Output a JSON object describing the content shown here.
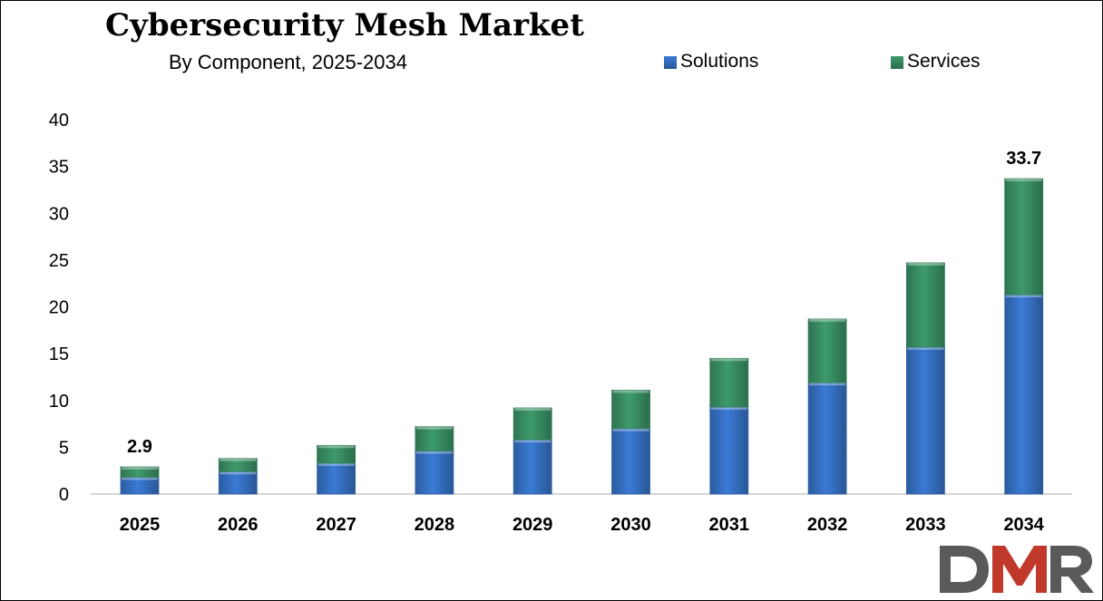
{
  "chart_data": {
    "type": "bar",
    "stacked": true,
    "title": "Cybersecurity Mesh Market",
    "subtitle": "By Component, 2025-2034",
    "categories": [
      "2025",
      "2026",
      "2027",
      "2028",
      "2029",
      "2030",
      "2031",
      "2032",
      "2033",
      "2034"
    ],
    "series": [
      {
        "name": "Solutions",
        "color": "#3a7bd5",
        "values": [
          1.8,
          2.4,
          3.3,
          4.6,
          5.8,
          7.0,
          9.3,
          11.9,
          15.7,
          21.3
        ]
      },
      {
        "name": "Services",
        "color": "#3d9b6c",
        "values": [
          1.1,
          1.4,
          1.9,
          2.6,
          3.4,
          4.1,
          5.2,
          6.8,
          9.0,
          12.4
        ]
      }
    ],
    "data_labels": [
      {
        "category": "2025",
        "text": "2.9"
      },
      {
        "category": "2034",
        "text": "33.7"
      }
    ],
    "yticks": [
      "0",
      "5",
      "10",
      "15",
      "20",
      "25",
      "30",
      "35",
      "40"
    ],
    "ylim": [
      0,
      40
    ],
    "xlabel": "",
    "ylabel": "",
    "grid": false,
    "legend_position": "top-right"
  },
  "logo": {
    "text": "DMR",
    "colors": [
      "#5a5a5a",
      "#c0392b"
    ]
  }
}
